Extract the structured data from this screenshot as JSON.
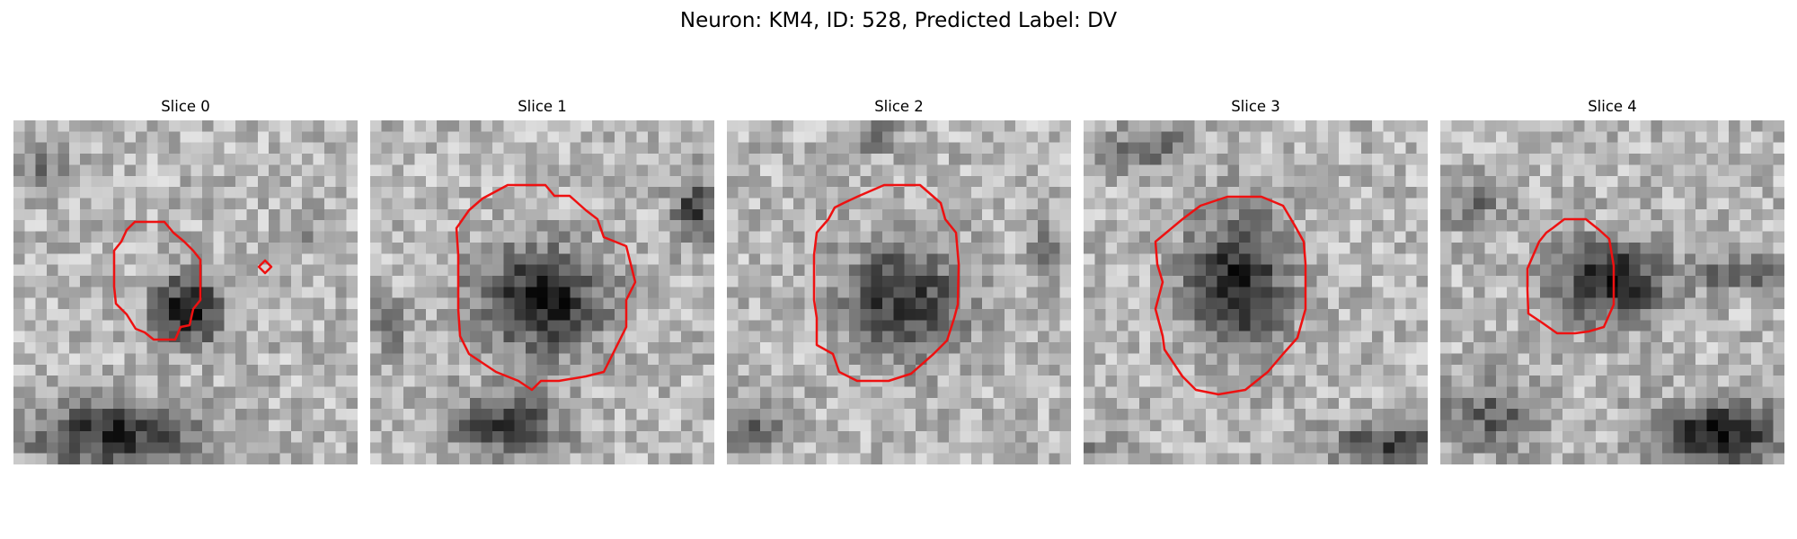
{
  "figure": {
    "title": "Neuron: KM4, ID: 528, Predicted Label: DV",
    "contour_color": "#ee1111",
    "colormap": "grayscale"
  },
  "slices": [
    {
      "title": "Slice 0"
    },
    {
      "title": "Slice 1"
    },
    {
      "title": "Slice 2"
    },
    {
      "title": "Slice 3"
    },
    {
      "title": "Slice 4"
    }
  ]
}
